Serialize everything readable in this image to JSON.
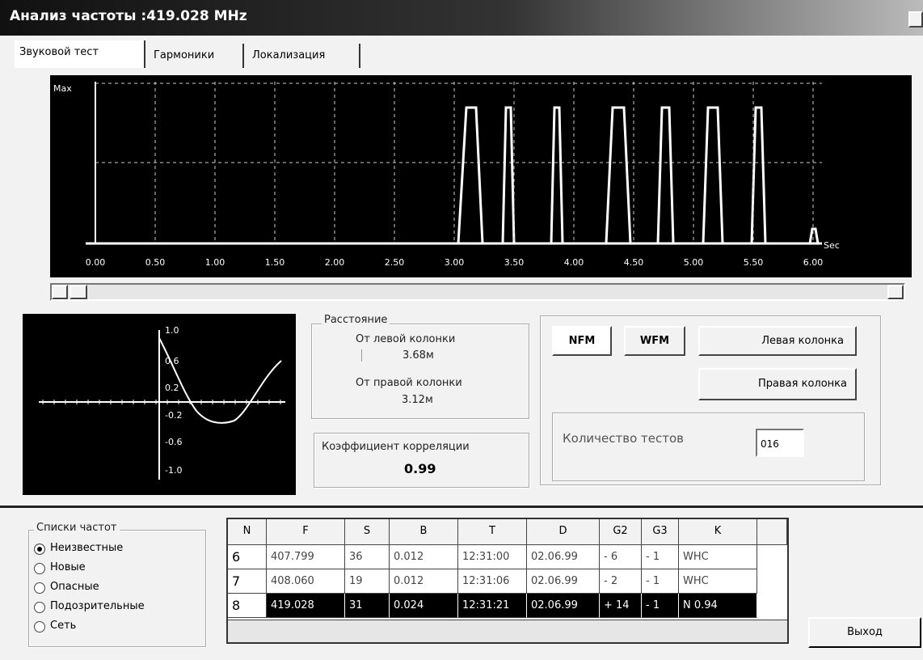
{
  "window": {
    "title": "Анализ частоты :419.028 MHz"
  },
  "tabs": [
    "Звуковой тест",
    "Гармоники",
    "Локализация"
  ],
  "spectrum": {
    "y_label": "Max",
    "x_unit": "Sec",
    "x_labels": [
      "0.00",
      "0.50",
      "1.00",
      "1.50",
      "2.00",
      "2.50",
      "3.00",
      "3.50",
      "4.00",
      "4.50",
      "5.00",
      "5.50",
      "6.00"
    ]
  },
  "correlation_plot": {
    "y_labels": [
      "1.0",
      "0.6",
      "0.2",
      "-0.2",
      "-0.6",
      "-1.0"
    ]
  },
  "distance": {
    "title": "Расстояние",
    "left_label": "От левой колонки",
    "left_value": "3.68м",
    "right_label": "От правой колонки",
    "right_value": "3.12м"
  },
  "correlation": {
    "label": "Коэффициент корреляции",
    "value": "0.99"
  },
  "buttons": {
    "nfm": "NFM",
    "wfm": "WFM",
    "left": "Левая колонка",
    "right": "Правая колонка",
    "exit": "Выход"
  },
  "tests": {
    "label": "Количество тестов",
    "value": "016"
  },
  "freq_lists": {
    "title": "Списки частот",
    "options": [
      "Неизвестные",
      "Новые",
      "Опасные",
      "Подозрительные",
      "Сеть"
    ]
  },
  "table": {
    "headers": [
      "N",
      "F",
      "S",
      "B",
      "T",
      "D",
      "G2",
      "G3",
      "K"
    ],
    "rows": [
      [
        "6",
        "407.799",
        "36",
        "0.012",
        "12:31:00",
        "02.06.99",
        "- 6",
        "- 1",
        "WHC"
      ],
      [
        "7",
        "408.060",
        "19",
        "0.012",
        "12:31:06",
        "02.06.99",
        "- 2",
        "- 1",
        "WHC"
      ],
      [
        "8",
        "419.028",
        "31",
        "0.024",
        "12:31:21",
        "02.06.99",
        "+ 14",
        "- 1",
        "N 0.94"
      ]
    ]
  }
}
